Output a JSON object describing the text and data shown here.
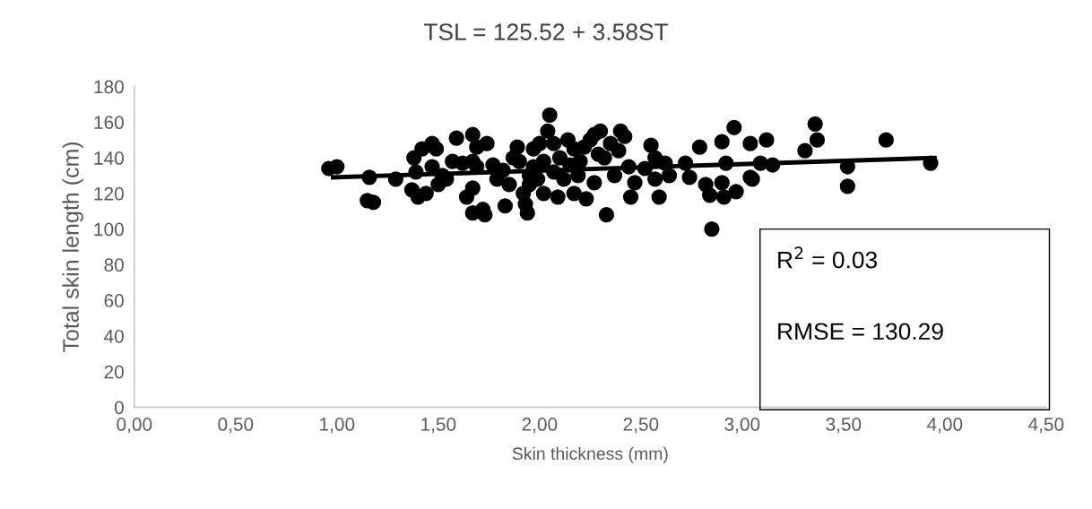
{
  "chart_data": {
    "type": "scatter",
    "title": "TSL = 125.52 + 3.58ST",
    "xlabel": "Skin thickness (mm)",
    "ylabel": "Total skin length (cm)",
    "xlim": [
      0,
      4.5
    ],
    "xticks": [
      {
        "value": 0,
        "label": "0,00"
      },
      {
        "value": 0.5,
        "label": "0,50"
      },
      {
        "value": 1,
        "label": "1,00"
      },
      {
        "value": 1.5,
        "label": "1,50"
      },
      {
        "value": 2,
        "label": "2,00"
      },
      {
        "value": 2.5,
        "label": "2,50"
      },
      {
        "value": 3,
        "label": "3,00"
      },
      {
        "value": 3.5,
        "label": "3,50"
      },
      {
        "value": 4,
        "label": "4,00"
      },
      {
        "value": 4.5,
        "label": "4,50"
      }
    ],
    "ylim": [
      0,
      180
    ],
    "yticks": [
      0,
      20,
      40,
      60,
      80,
      100,
      120,
      140,
      160,
      180
    ],
    "grid": false,
    "legend": false,
    "annotations": [
      "R$^{2}$ = 0.03",
      "RMSE = 130.29"
    ],
    "series": [
      {
        "marker": "circle",
        "color": "#000000",
        "x": [
          0.96,
          1.0,
          1.15,
          1.18,
          1.16,
          1.29,
          1.37,
          1.38,
          1.4,
          1.42,
          1.44,
          1.39,
          1.47,
          1.49,
          1.47,
          1.5,
          1.52,
          1.54,
          1.57,
          1.59,
          1.62,
          1.64,
          1.67,
          1.69,
          1.67,
          1.69,
          1.67,
          1.67,
          1.72,
          1.73,
          1.74,
          1.77,
          1.79,
          1.82,
          1.83,
          1.85,
          1.87,
          1.89,
          1.9,
          1.92,
          1.93,
          1.94,
          1.95,
          1.95,
          1.97,
          1.97,
          1.99,
          2.0,
          2.02,
          2.02,
          2.04,
          2.05,
          2.07,
          2.07,
          2.09,
          2.1,
          2.12,
          2.14,
          2.15,
          2.17,
          2.17,
          2.19,
          2.2,
          2.22,
          2.23,
          2.25,
          2.27,
          2.27,
          2.29,
          2.3,
          2.32,
          2.33,
          2.35,
          2.37,
          2.39,
          2.4,
          2.42,
          2.44,
          2.45,
          2.47,
          2.52,
          2.55,
          2.57,
          2.57,
          2.59,
          2.62,
          2.64,
          2.72,
          2.74,
          2.79,
          2.82,
          2.84,
          2.85,
          2.9,
          2.9,
          2.91,
          2.92,
          2.96,
          2.97,
          3.04,
          3.05,
          3.09,
          3.04,
          3.12,
          3.15,
          3.31,
          3.36,
          3.37,
          3.52,
          3.52,
          3.71,
          3.93
        ],
        "values": [
          134,
          135,
          116,
          115,
          129,
          128,
          122,
          140,
          118,
          145,
          120,
          132,
          148,
          145,
          135,
          125,
          130,
          128,
          138,
          151,
          137,
          118,
          153,
          146,
          138,
          135,
          123,
          109,
          111,
          108,
          148,
          136,
          128,
          133,
          113,
          125,
          140,
          146,
          138,
          120,
          114,
          109,
          130,
          125,
          135,
          145,
          128,
          148,
          138,
          120,
          155,
          164,
          148,
          132,
          118,
          140,
          128,
          150,
          136,
          145,
          120,
          130,
          138,
          146,
          117,
          150,
          153,
          126,
          142,
          155,
          140,
          108,
          148,
          130,
          144,
          155,
          152,
          135,
          118,
          126,
          134,
          147,
          140,
          128,
          118,
          137,
          130,
          137,
          129,
          146,
          125,
          119,
          100,
          149,
          126,
          118,
          137,
          157,
          121,
          148,
          128,
          137,
          129,
          150,
          136,
          144,
          159,
          150,
          135,
          124,
          150,
          137
        ]
      },
      {
        "type": "line",
        "color": "#000000",
        "x": [
          0.97,
          3.96
        ],
        "values": [
          129,
          140
        ],
        "marker": "none"
      }
    ]
  }
}
